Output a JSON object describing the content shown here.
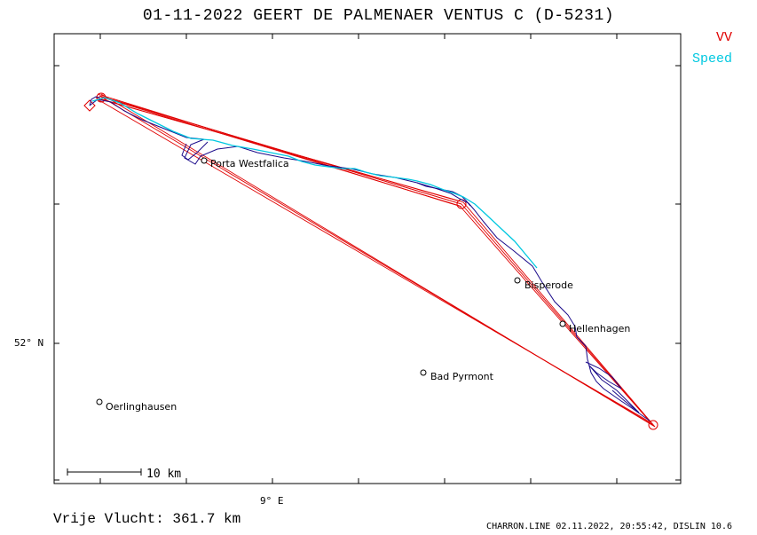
{
  "title": "01-11-2022   GEERT DE PALMENAER   VENTUS C (D-5231)",
  "legend": {
    "vv": "VV",
    "speed": "Speed",
    "vv_color": "#e00000",
    "speed_color": "#00c8e0",
    "track_color": "#1a0a8a"
  },
  "axes": {
    "y_label": "52° N",
    "x_label": "9° E"
  },
  "scale_bar": {
    "label": "10 km"
  },
  "places": [
    {
      "name": "Porta Westfalica"
    },
    {
      "name": "Bisperode"
    },
    {
      "name": "Hellenhagen"
    },
    {
      "name": "Bad Pyrmont"
    },
    {
      "name": "Oerlinghausen"
    }
  ],
  "distance": "Vrije Vlucht:  361.7 km",
  "footer": "CHARRON.LINE 02.11.2022, 20:55:42, DISLIN 10.6"
}
